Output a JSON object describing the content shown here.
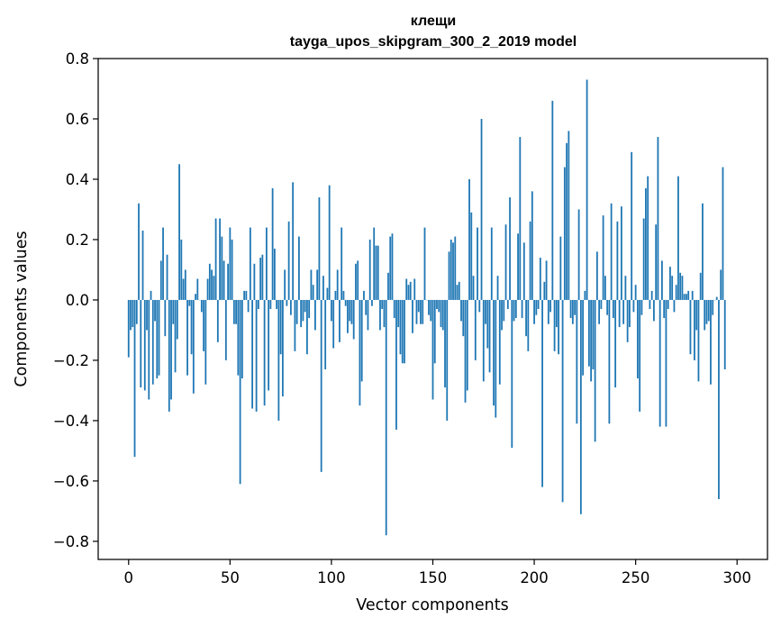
{
  "chart_data": {
    "type": "bar",
    "title": "клещи",
    "subtitle": "tayga_upos_skipgram_300_2_2019 model",
    "xlabel": "Vector components",
    "ylabel": "Components values",
    "xlim": [
      -15,
      315
    ],
    "ylim": [
      -0.86,
      0.8
    ],
    "xticks": [
      0,
      50,
      100,
      150,
      200,
      250,
      300
    ],
    "yticks": [
      -0.8,
      -0.6,
      -0.4,
      -0.2,
      0.0,
      0.2,
      0.4,
      0.6,
      0.8
    ],
    "xtick_labels": [
      "0",
      "50",
      "100",
      "150",
      "200",
      "250",
      "300"
    ],
    "ytick_labels": [
      "−0.8",
      "−0.6",
      "−0.4",
      "−0.2",
      "0.0",
      "0.2",
      "0.4",
      "0.6",
      "0.8"
    ],
    "grid": false,
    "bar_color": "#1f77b4",
    "values": [
      -0.19,
      -0.1,
      -0.09,
      -0.52,
      -0.08,
      0.32,
      -0.29,
      0.23,
      -0.3,
      -0.1,
      -0.33,
      0.03,
      -0.28,
      -0.07,
      -0.26,
      -0.25,
      0.13,
      0.24,
      -0.12,
      0.15,
      -0.37,
      -0.33,
      -0.08,
      -0.24,
      -0.13,
      0.45,
      0.2,
      0.07,
      0.1,
      -0.25,
      -0.02,
      -0.18,
      -0.31,
      0.02,
      0.07,
      0.0,
      -0.04,
      -0.17,
      -0.28,
      0.07,
      0.12,
      0.1,
      0.08,
      0.27,
      -0.14,
      0.27,
      0.21,
      0.13,
      -0.2,
      0.12,
      0.24,
      0.2,
      -0.08,
      -0.08,
      -0.25,
      -0.61,
      -0.26,
      0.03,
      0.03,
      -0.04,
      0.24,
      -0.36,
      0.12,
      -0.37,
      -0.03,
      0.14,
      0.15,
      -0.35,
      0.24,
      -0.3,
      -0.03,
      0.37,
      0.17,
      -0.03,
      -0.4,
      -0.18,
      -0.32,
      0.1,
      -0.02,
      0.26,
      -0.05,
      0.39,
      -0.17,
      -0.08,
      0.21,
      -0.09,
      -0.07,
      -0.04,
      -0.18,
      -0.06,
      0.1,
      0.05,
      -0.1,
      0.1,
      0.34,
      -0.57,
      0.08,
      -0.23,
      0.04,
      0.38,
      -0.07,
      -0.16,
      0.03,
      0.1,
      -0.14,
      0.24,
      0.03,
      -0.02,
      -0.11,
      -0.07,
      -0.08,
      -0.13,
      0.12,
      0.13,
      -0.35,
      -0.27,
      0.03,
      -0.05,
      -0.1,
      0.2,
      -0.02,
      0.24,
      0.18,
      0.18,
      -0.1,
      -0.03,
      -0.09,
      -0.78,
      0.09,
      0.21,
      0.22,
      -0.06,
      -0.43,
      -0.09,
      -0.18,
      -0.21,
      -0.21,
      0.07,
      0.05,
      0.06,
      -0.11,
      0.07,
      -0.08,
      -0.04,
      -0.08,
      -0.08,
      0.24,
      0.0,
      -0.05,
      -0.07,
      -0.33,
      -0.21,
      -0.03,
      -0.04,
      -0.09,
      -0.1,
      -0.29,
      -0.4,
      0.16,
      0.2,
      0.19,
      0.21,
      0.05,
      0.06,
      -0.07,
      -0.12,
      -0.34,
      -0.3,
      0.4,
      0.29,
      0.08,
      -0.2,
      0.24,
      -0.04,
      0.6,
      -0.27,
      -0.08,
      -0.16,
      -0.24,
      0.24,
      -0.35,
      -0.39,
      0.08,
      -0.28,
      -0.1,
      -0.07,
      0.25,
      -0.03,
      0.34,
      -0.49,
      -0.07,
      -0.06,
      0.22,
      0.54,
      -0.06,
      0.19,
      -0.12,
      -0.17,
      0.26,
      0.36,
      -0.08,
      -0.05,
      -0.03,
      0.14,
      -0.62,
      0.06,
      0.13,
      -0.08,
      -0.04,
      0.66,
      -0.17,
      -0.09,
      -0.18,
      0.21,
      -0.67,
      0.44,
      0.52,
      0.56,
      -0.06,
      -0.08,
      -0.05,
      -0.41,
      0.3,
      -0.71,
      -0.25,
      0.03,
      0.73,
      -0.22,
      -0.27,
      -0.23,
      -0.47,
      0.16,
      -0.08,
      -0.03,
      0.28,
      0.08,
      -0.05,
      -0.41,
      0.32,
      -0.06,
      -0.29,
      0.26,
      -0.09,
      0.31,
      -0.08,
      0.08,
      -0.14,
      -0.09,
      0.49,
      -0.04,
      0.05,
      -0.26,
      -0.37,
      -0.05,
      0.27,
      0.37,
      0.41,
      -0.03,
      0.03,
      -0.07,
      0.25,
      0.54,
      -0.42,
      0.13,
      -0.06,
      -0.42,
      -0.03,
      0.11,
      0.08,
      -0.04,
      0.05,
      0.41,
      0.09,
      0.08,
      0.02,
      0.02,
      0.03,
      -0.18,
      0.03,
      -0.2,
      -0.1,
      -0.27,
      0.09,
      0.32,
      -0.1,
      -0.08,
      -0.07,
      -0.28,
      -0.05,
      0.0,
      0.01,
      -0.66,
      0.1,
      0.44,
      -0.23
    ]
  }
}
